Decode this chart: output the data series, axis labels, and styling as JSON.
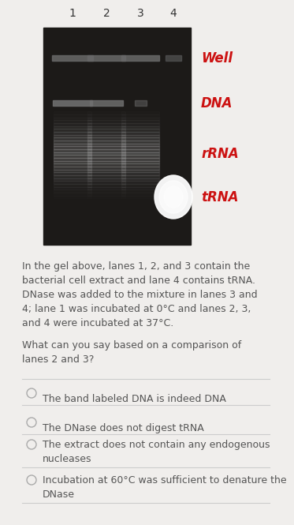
{
  "background_color": "#f0eeec",
  "gel_bg": "#1c1a18",
  "lane_labels": [
    "1",
    "2",
    "3",
    "4"
  ],
  "band_labels": [
    "Well",
    "DNA",
    "rRNA",
    "tRNA"
  ],
  "band_label_color": "#cc1111",
  "para1_lines": [
    "In the gel above, lanes 1, 2, and 3 contain the",
    "bacterial cell extract and lane 4 contains tRNA.",
    "DNase was added to the mixture in lanes 3 and",
    "4; lane 1 was incubated at 0°C and lanes 2, 3,",
    "and 4 were incubated at 37°C."
  ],
  "para2_lines": [
    "What can you say based on a comparison of",
    "lanes 2 and 3?"
  ],
  "options": [
    "The band labeled DNA is indeed DNA",
    "The DNase does not digest tRNA",
    "The extract does not contain any endogenous\nnucleases",
    "Incubation at 60°C was sufficient to denature the\nDNase"
  ],
  "text_color": "#555555",
  "option_text_color": "#555555",
  "circle_color": "#aaaaaa",
  "line_color": "#cccccc",
  "label_fontsize": 10,
  "band_label_fontsize": 12,
  "para_fontsize": 9,
  "option_fontsize": 9
}
